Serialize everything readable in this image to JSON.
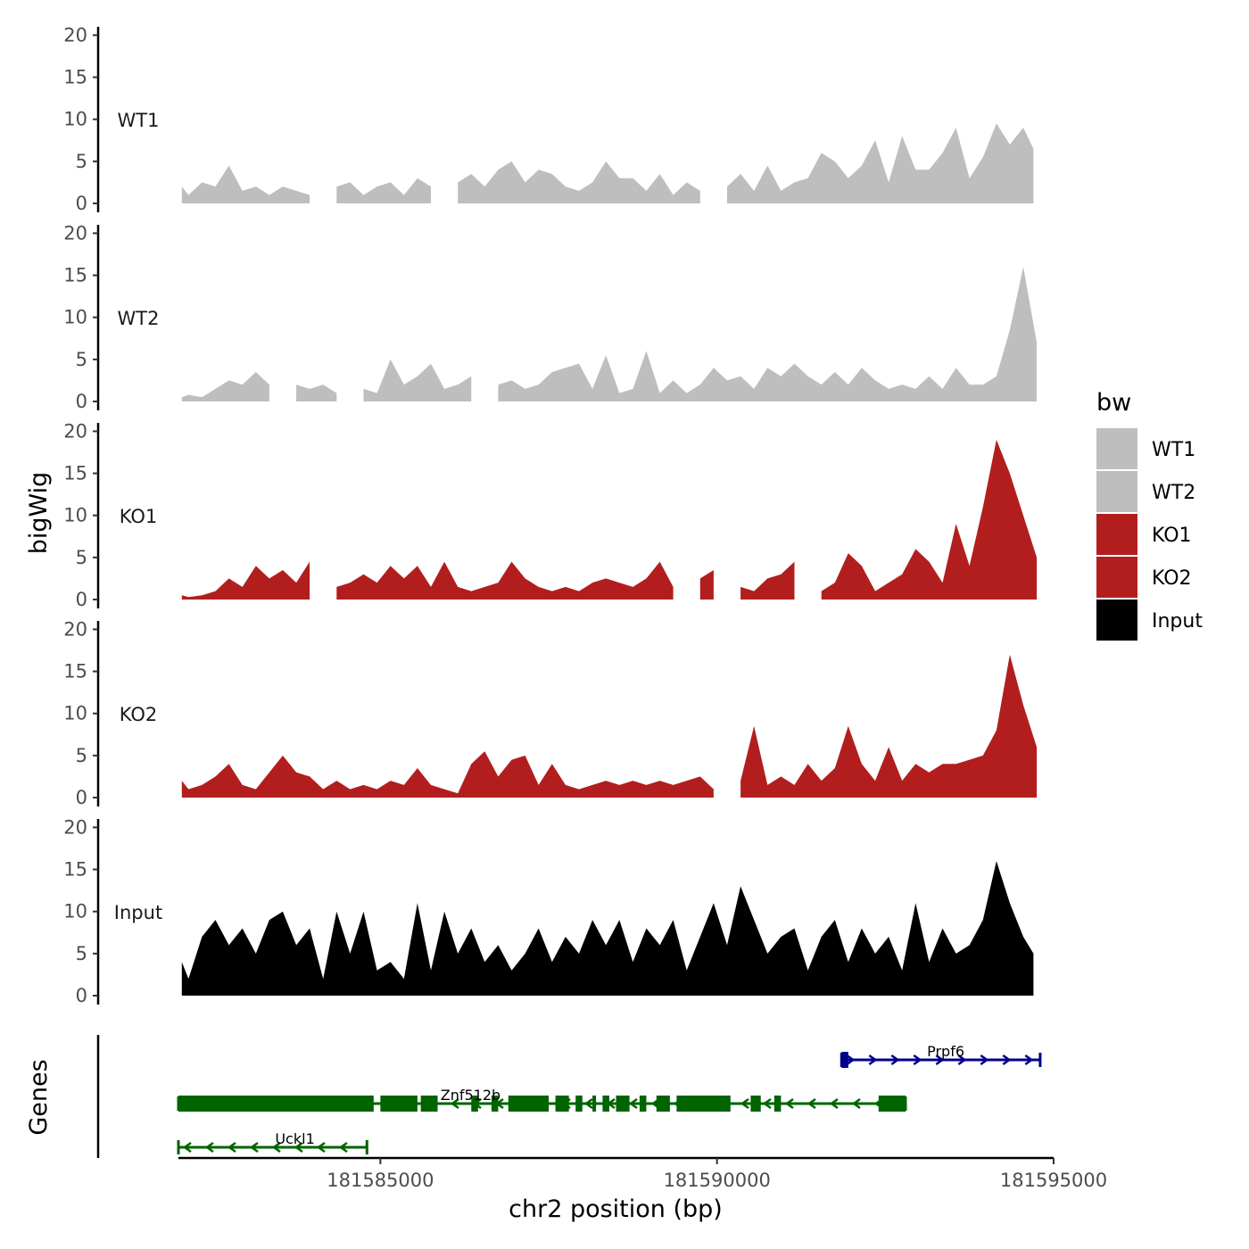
{
  "chart_data": {
    "type": "area",
    "ylabel": "bigWig",
    "xlabel": "chr2 position (bp)",
    "xlim": [
      181582000,
      181595000
    ],
    "ylim": [
      0,
      21
    ],
    "y_ticks": [
      0,
      5,
      10,
      15,
      20
    ],
    "x_ticks": [
      181585000,
      181590000,
      181595000
    ],
    "x_tick_labels": [
      "181585000",
      "181590000",
      "181595000"
    ],
    "legend": {
      "title": "bw",
      "placement": "right",
      "entries": [
        {
          "name": "WT1",
          "color": "#bebebe"
        },
        {
          "name": "WT2",
          "color": "#bebebe"
        },
        {
          "name": "KO1",
          "color": "#b21e1e"
        },
        {
          "name": "KO2",
          "color": "#b21e1e"
        },
        {
          "name": "Input",
          "color": "#000000"
        }
      ]
    },
    "series": [
      {
        "name": "WT1",
        "color": "#bebebe",
        "x": [
          181582050,
          181582150,
          181582350,
          181582550,
          181582750,
          181582950,
          181583150,
          181583350,
          181583550,
          181583750,
          181583950,
          181584150,
          181584350,
          181584550,
          181584750,
          181584950,
          181585150,
          181585350,
          181585550,
          181585750,
          181585950,
          181586150,
          181586350,
          181586550,
          181586750,
          181586950,
          181587150,
          181587350,
          181587550,
          181587750,
          181587950,
          181588150,
          181588350,
          181588550,
          181588750,
          181588950,
          181589150,
          181589350,
          181589550,
          181589750,
          181589950,
          181590150,
          181590350,
          181590550,
          181590750,
          181590950,
          181591150,
          181591350,
          181591550,
          181591750,
          181591950,
          181592150,
          181592350,
          181592550,
          181592750,
          181592950,
          181593150,
          181593350,
          181593550,
          181593750,
          181593950,
          181594150,
          181594350,
          181594550,
          181594700
        ],
        "y": [
          2,
          1,
          2.5,
          2,
          4.5,
          1.5,
          2,
          1,
          2,
          1.5,
          1,
          null,
          2,
          2.5,
          1,
          2,
          2.5,
          1,
          3,
          2,
          null,
          2.5,
          3.5,
          2,
          4,
          5,
          2.5,
          4,
          3.5,
          2,
          1.5,
          2.5,
          5,
          3,
          3,
          1.5,
          3.5,
          1,
          2.5,
          1.5,
          null,
          2,
          3.5,
          1.5,
          4.5,
          1.5,
          2.5,
          3,
          6,
          5,
          3,
          4.5,
          7.5,
          2.5,
          8,
          4,
          4,
          6,
          9,
          3,
          5.5,
          9.5,
          7,
          9,
          6.5
        ]
      },
      {
        "name": "WT2",
        "color": "#bebebe",
        "x": [
          181582050,
          181582150,
          181582350,
          181582550,
          181582750,
          181582950,
          181583150,
          181583350,
          181583550,
          181583750,
          181583950,
          181584150,
          181584350,
          181584550,
          181584750,
          181584950,
          181585150,
          181585350,
          181585550,
          181585750,
          181585950,
          181586150,
          181586350,
          181586550,
          181586750,
          181586950,
          181587150,
          181587350,
          181587550,
          181587750,
          181587950,
          181588150,
          181588350,
          181588550,
          181588750,
          181588950,
          181589150,
          181589350,
          181589550,
          181589750,
          181589950,
          181590150,
          181590350,
          181590550,
          181590750,
          181590950,
          181591150,
          181591350,
          181591550,
          181591750,
          181591950,
          181592150,
          181592350,
          181592550,
          181592750,
          181592950,
          181593150,
          181593350,
          181593550,
          181593750,
          181593950,
          181594150,
          181594350,
          181594550,
          181594750
        ],
        "y": [
          0.5,
          0.8,
          0.5,
          1.5,
          2.5,
          2,
          3.5,
          2,
          null,
          2,
          1.5,
          2,
          1,
          null,
          1.5,
          1,
          5,
          2,
          3,
          4.5,
          1.5,
          2,
          3,
          null,
          2,
          2.5,
          1.5,
          2,
          3.5,
          4,
          4.5,
          1.5,
          5.5,
          1,
          1.5,
          6,
          1,
          2.5,
          1,
          2,
          4,
          2.5,
          3,
          1.5,
          4,
          3,
          4.5,
          3,
          2,
          3.5,
          2,
          4,
          2.5,
          1.5,
          2,
          1.5,
          3,
          1.5,
          4,
          2,
          2,
          3,
          8.5,
          16,
          7
        ]
      },
      {
        "name": "KO1",
        "color": "#b21e1e",
        "x": [
          181582050,
          181582150,
          181582350,
          181582550,
          181582750,
          181582950,
          181583150,
          181583350,
          181583550,
          181583750,
          181583950,
          181584150,
          181584350,
          181584550,
          181584750,
          181584950,
          181585150,
          181585350,
          181585550,
          181585750,
          181585950,
          181586150,
          181586350,
          181586550,
          181586750,
          181586950,
          181587150,
          181587350,
          181587550,
          181587750,
          181587950,
          181588150,
          181588350,
          181588550,
          181588750,
          181588950,
          181589150,
          181589350,
          181589550,
          181589750,
          181589950,
          181590150,
          181590350,
          181590550,
          181590750,
          181590950,
          181591150,
          181591350,
          181591550,
          181591750,
          181591950,
          181592150,
          181592350,
          181592550,
          181592750,
          181592950,
          181593150,
          181593350,
          181593550,
          181593750,
          181593950,
          181594150,
          181594350,
          181594550,
          181594750
        ],
        "y": [
          0.5,
          0.3,
          0.5,
          1,
          2.5,
          1.5,
          4,
          2.5,
          3.5,
          2,
          4.5,
          null,
          1.5,
          2,
          3,
          2,
          4,
          2.5,
          4,
          1.5,
          4.5,
          1.5,
          1,
          1.5,
          2,
          4.5,
          2.5,
          1.5,
          1,
          1.5,
          1,
          2,
          2.5,
          2,
          1.5,
          2.5,
          4.5,
          1.5,
          null,
          2.5,
          3.5,
          null,
          1.5,
          1,
          2.5,
          3,
          4.5,
          null,
          1,
          2,
          5.5,
          4,
          1,
          2,
          3,
          6,
          4.5,
          2,
          9,
          4,
          11,
          19,
          15,
          10,
          5
        ]
      },
      {
        "name": "KO2",
        "color": "#b21e1e",
        "x": [
          181582050,
          181582150,
          181582350,
          181582550,
          181582750,
          181582950,
          181583150,
          181583350,
          181583550,
          181583750,
          181583950,
          181584150,
          181584350,
          181584550,
          181584750,
          181584950,
          181585150,
          181585350,
          181585550,
          181585750,
          181585950,
          181586150,
          181586350,
          181586550,
          181586750,
          181586950,
          181587150,
          181587350,
          181587550,
          181587750,
          181587950,
          181588150,
          181588350,
          181588550,
          181588750,
          181588950,
          181589150,
          181589350,
          181589550,
          181589750,
          181589950,
          181590150,
          181590350,
          181590550,
          181590750,
          181590950,
          181591150,
          181591350,
          181591550,
          181591750,
          181591950,
          181592150,
          181592350,
          181592550,
          181592750,
          181592950,
          181593150,
          181593350,
          181593550,
          181593750,
          181593950,
          181594150,
          181594350,
          181594550,
          181594750
        ],
        "y": [
          2,
          1,
          1.5,
          2.5,
          4,
          1.5,
          1,
          3,
          5,
          3,
          2.5,
          1,
          2,
          1,
          1.5,
          1,
          2,
          1.5,
          3.5,
          1.5,
          1,
          0.5,
          4,
          5.5,
          2.5,
          4.5,
          5,
          1.5,
          4,
          1.5,
          1,
          1.5,
          2,
          1.5,
          2,
          1.5,
          2,
          1.5,
          2,
          2.5,
          1,
          null,
          2,
          8.5,
          1.5,
          2.5,
          1.5,
          4,
          2,
          3.5,
          8.5,
          4,
          2,
          6,
          2,
          4,
          3,
          4,
          4,
          4.5,
          5,
          8,
          17,
          11,
          6
        ]
      },
      {
        "name": "Input",
        "color": "#000000",
        "x": [
          181582050,
          181582150,
          181582350,
          181582550,
          181582750,
          181582950,
          181583150,
          181583350,
          181583550,
          181583750,
          181583950,
          181584150,
          181584350,
          181584550,
          181584750,
          181584950,
          181585150,
          181585350,
          181585550,
          181585750,
          181585950,
          181586150,
          181586350,
          181586550,
          181586750,
          181586950,
          181587150,
          181587350,
          181587550,
          181587750,
          181587950,
          181588150,
          181588350,
          181588550,
          181588750,
          181588950,
          181589150,
          181589350,
          181589550,
          181589750,
          181589950,
          181590150,
          181590350,
          181590550,
          181590750,
          181590950,
          181591150,
          181591350,
          181591550,
          181591750,
          181591950,
          181592150,
          181592350,
          181592550,
          181592750,
          181592950,
          181593150,
          181593350,
          181593550,
          181593750,
          181593950,
          181594150,
          181594350,
          181594550,
          181594700
        ],
        "y": [
          4,
          2,
          7,
          9,
          6,
          8,
          5,
          9,
          10,
          6,
          8,
          2,
          10,
          5,
          10,
          3,
          4,
          2,
          11,
          3,
          10,
          5,
          8,
          4,
          6,
          3,
          5,
          8,
          4,
          7,
          5,
          9,
          6,
          9,
          4,
          8,
          6,
          9,
          3,
          7,
          11,
          6,
          13,
          9,
          5,
          7,
          8,
          3,
          7,
          9,
          4,
          8,
          5,
          7,
          3,
          11,
          4,
          8,
          5,
          6,
          9,
          16,
          11,
          7,
          5
        ]
      }
    ],
    "tracks": [
      {
        "label": "WT1",
        "series": "WT1"
      },
      {
        "label": "WT2",
        "series": "WT2"
      },
      {
        "label": "KO1",
        "series": "KO1"
      },
      {
        "label": "KO2",
        "series": "KO2"
      },
      {
        "label": "Input",
        "series": "Input"
      }
    ],
    "genes_label": "Genes",
    "genes": [
      {
        "name": "Prpf6",
        "strand": "+",
        "color": "#00008b",
        "start": 181591850,
        "end": 181594800,
        "exons": [
          [
            181591850,
            181591950
          ]
        ]
      },
      {
        "name": "Znf512b",
        "strand": "-",
        "color": "#006400",
        "start": 181582000,
        "end": 181592800,
        "exons": [
          [
            181582000,
            181584900
          ],
          [
            181585000,
            181585550
          ],
          [
            181585600,
            181585850
          ],
          [
            181586350,
            181586450
          ],
          [
            181586650,
            181586750
          ],
          [
            181586900,
            181587500
          ],
          [
            181587600,
            181587800
          ],
          [
            181587900,
            181588000
          ],
          [
            181588150,
            181588200
          ],
          [
            181588300,
            181588400
          ],
          [
            181588500,
            181588700
          ],
          [
            181588850,
            181588950
          ],
          [
            181589100,
            181589300
          ],
          [
            181589400,
            181590200
          ],
          [
            181590500,
            181590650
          ],
          [
            181590850,
            181590950
          ],
          [
            181592400,
            181592800
          ]
        ]
      },
      {
        "name": "Uckl1",
        "strand": "-",
        "color": "#006400",
        "start": 181582000,
        "end": 181584800,
        "exons": []
      }
    ]
  }
}
